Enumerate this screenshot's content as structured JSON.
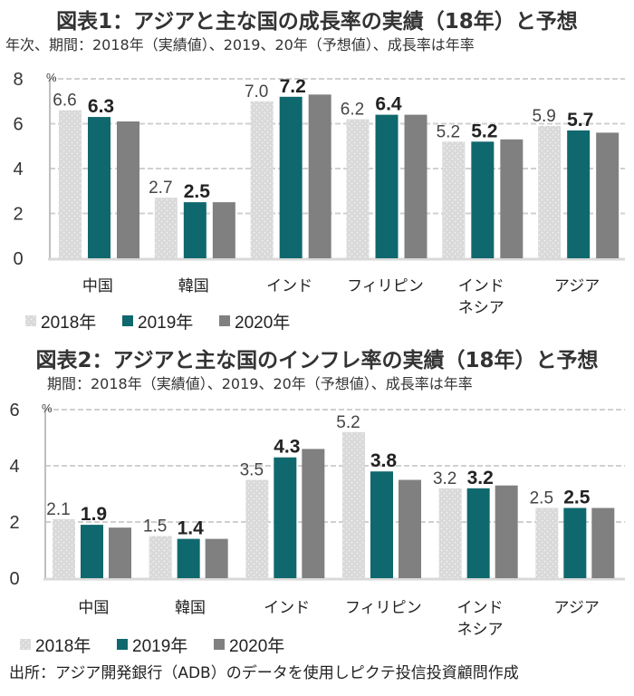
{
  "figure1": {
    "title": "図表1：アジアと主な国の成長率の実績（18年）と予想",
    "subtitle": "年次、期間：2018年（実績値）、2019、20年（予想値）、成長率は年率"
  },
  "figure2": {
    "title": "図表2：アジアと主な国のインフレ率の実績（18年）と予想",
    "subtitle": "期間：2018年（実績値）、2019、20年（予想値）、成長率は年率"
  },
  "source": "出所：アジア開発銀行（ADB）のデータを使用しピクテ投信投資顧問作成",
  "colors": {
    "s2018": "#d9d9d9",
    "s2019": "#0f686d",
    "s2020": "#808080",
    "grid": "#d0d0d0",
    "axis": "#bfbfbf"
  },
  "chart_data": [
    {
      "type": "bar",
      "title": "図表1：アジアと主な国の成長率の実績（18年）と予想",
      "subtitle": "年次、期間：2018年（実績値）、2019、20年（予想値）、成長率は年率",
      "unit": "%",
      "categories": [
        [
          "中国"
        ],
        [
          "韓国"
        ],
        [
          "インド"
        ],
        [
          "フィリピン"
        ],
        [
          "インド",
          "ネシア"
        ],
        [
          "アジア"
        ]
      ],
      "series": [
        {
          "name": "2018年",
          "values": [
            6.6,
            2.7,
            7.0,
            6.2,
            5.2,
            5.9
          ],
          "labels": [
            "6.6",
            "2.7",
            "7.0",
            "6.2",
            "5.2",
            "5.9"
          ]
        },
        {
          "name": "2019年",
          "values": [
            6.3,
            2.5,
            7.2,
            6.4,
            5.2,
            5.7
          ],
          "labels": [
            "6.3",
            "2.5",
            "7.2",
            "6.4",
            "5.2",
            "5.7"
          ]
        },
        {
          "name": "2020年",
          "values": [
            6.1,
            2.5,
            7.3,
            6.4,
            5.3,
            5.6
          ],
          "labels": null
        }
      ],
      "yticks": [
        0,
        2,
        4,
        6,
        8
      ],
      "ylim": [
        0,
        8
      ],
      "grid": true,
      "legend": "bottom-left"
    },
    {
      "type": "bar",
      "title": "図表2：アジアと主な国のインフレ率の実績（18年）と予想",
      "subtitle": "期間：2018年（実績値）、2019、20年（予想値）、成長率は年率",
      "unit": "%",
      "categories": [
        [
          "中国"
        ],
        [
          "韓国"
        ],
        [
          "インド"
        ],
        [
          "フィリピン"
        ],
        [
          "インド",
          "ネシア"
        ],
        [
          "アジア"
        ]
      ],
      "series": [
        {
          "name": "2018年",
          "values": [
            2.1,
            1.5,
            3.5,
            5.2,
            3.2,
            2.5
          ],
          "labels": [
            "2.1",
            "1.5",
            "3.5",
            "5.2",
            "3.2",
            "2.5"
          ]
        },
        {
          "name": "2019年",
          "values": [
            1.9,
            1.4,
            4.3,
            3.8,
            3.2,
            2.5
          ],
          "labels": [
            "1.9",
            "1.4",
            "4.3",
            "3.8",
            "3.2",
            "2.5"
          ]
        },
        {
          "name": "2020年",
          "values": [
            1.8,
            1.4,
            4.6,
            3.5,
            3.3,
            2.5
          ],
          "labels": null
        }
      ],
      "yticks": [
        0,
        2,
        4,
        6
      ],
      "ylim": [
        0,
        6
      ],
      "grid": true,
      "legend": "bottom-left"
    }
  ]
}
